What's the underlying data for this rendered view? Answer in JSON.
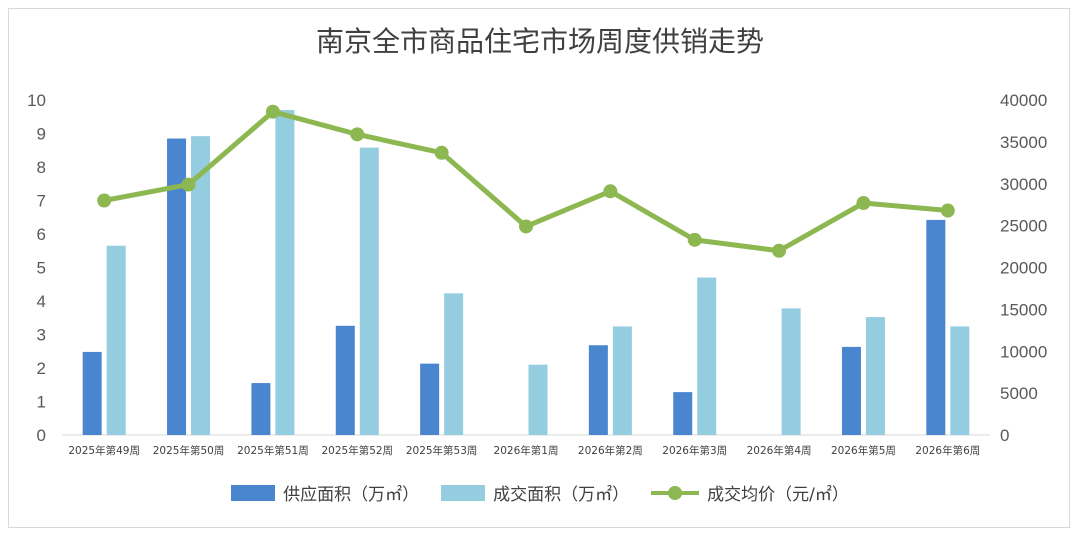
{
  "chart_data": {
    "type": "bar",
    "title": "南京全市商品住宅市场周度供销走势",
    "categories": [
      "2025年第49周",
      "2025年第50周",
      "2025年第51周",
      "2025年第52周",
      "2025年第53周",
      "2026年第1周",
      "2026年第2周",
      "2026年第3周",
      "2026年第4周",
      "2026年第5周",
      "2026年第6周"
    ],
    "series": [
      {
        "name": "供应面积（万㎡）",
        "type": "bar",
        "axis": "left",
        "color": "#4a86d0",
        "values": [
          2.48,
          8.85,
          1.55,
          3.26,
          2.13,
          0,
          2.68,
          1.28,
          0,
          2.63,
          6.42
        ]
      },
      {
        "name": "成交面积（万㎡）",
        "type": "bar",
        "axis": "left",
        "color": "#95cde0",
        "values": [
          5.65,
          8.92,
          9.7,
          8.58,
          4.23,
          2.1,
          3.24,
          4.7,
          3.78,
          3.52,
          3.24
        ]
      },
      {
        "name": "成交均价（元/㎡）",
        "type": "line",
        "axis": "right",
        "color": "#8db750",
        "values": [
          28000,
          29900,
          38600,
          35900,
          33700,
          24900,
          29100,
          23300,
          22000,
          27700,
          26800
        ]
      }
    ],
    "ylim": [
      0,
      10
    ],
    "y_ticks": [
      "0",
      "1",
      "2",
      "3",
      "4",
      "5",
      "6",
      "7",
      "8",
      "9",
      "10"
    ],
    "y2lim": [
      0,
      40000
    ],
    "y2_ticks": [
      "0",
      "5000",
      "10000",
      "15000",
      "20000",
      "25000",
      "30000",
      "35000",
      "40000"
    ],
    "grid": false,
    "legend": "bottom"
  }
}
